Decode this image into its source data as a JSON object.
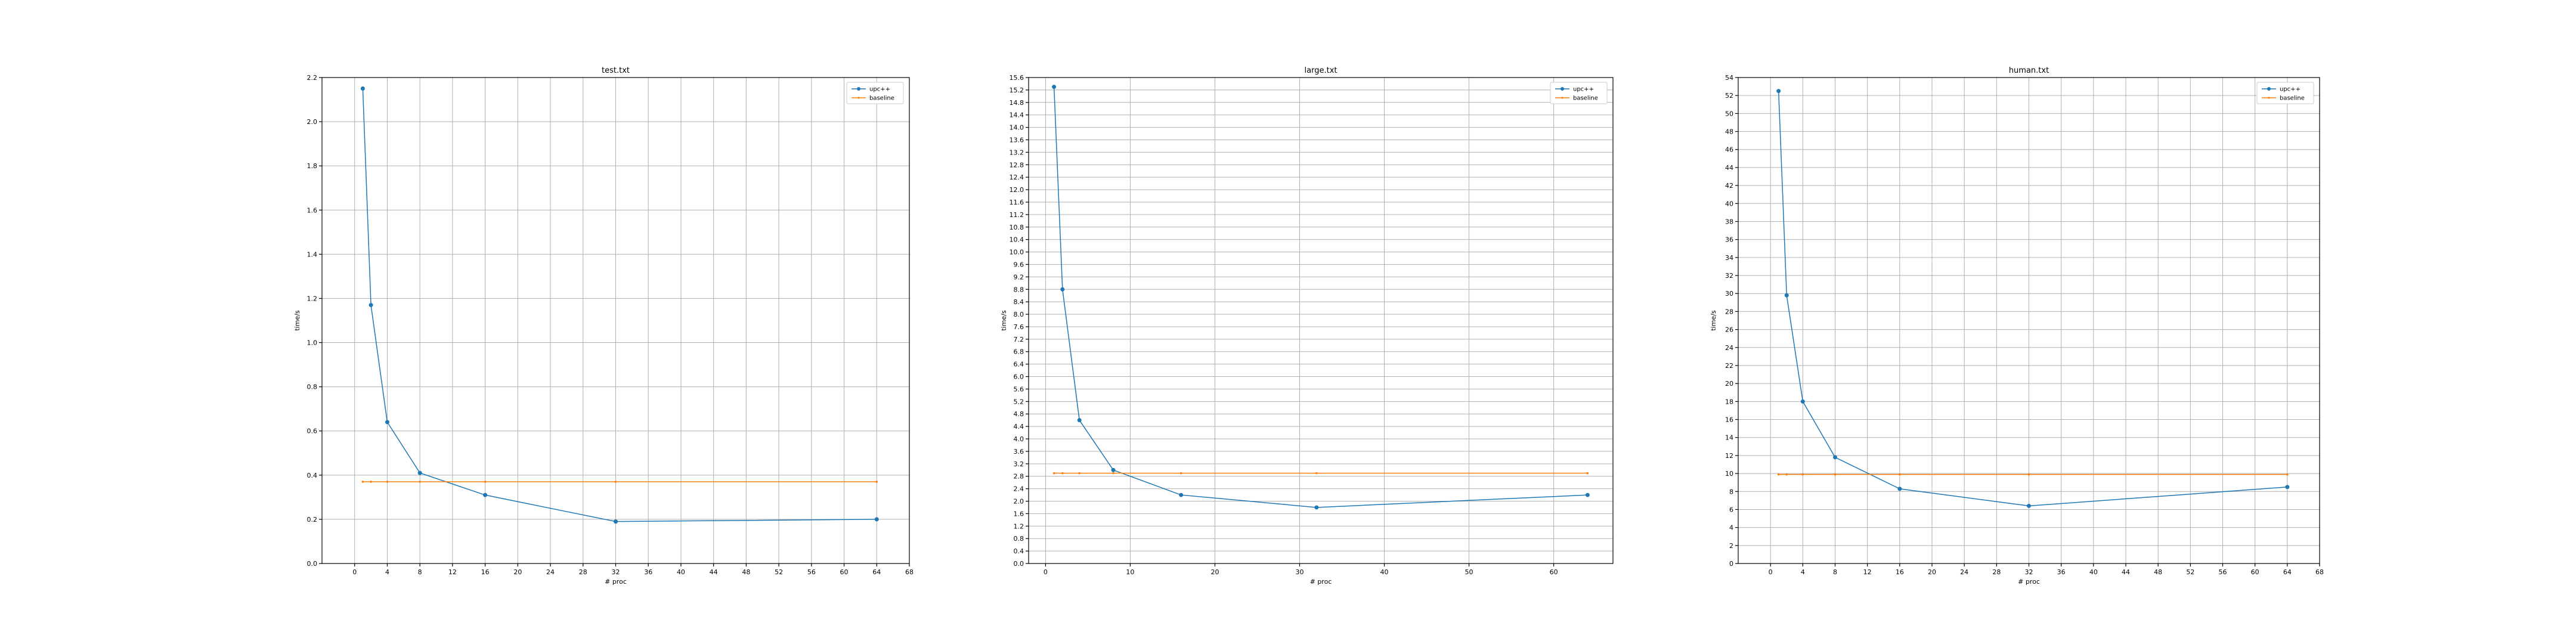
{
  "chart_data": [
    {
      "type": "line",
      "title": "test.txt",
      "xlabel": "# proc",
      "ylabel": "time/s",
      "grid": true,
      "legend_position": "top-right",
      "xlim": [
        -4,
        68
      ],
      "ylim": [
        0,
        2.2
      ],
      "xticks": [
        0,
        4,
        8,
        12,
        16,
        20,
        24,
        28,
        32,
        36,
        40,
        44,
        48,
        52,
        56,
        60,
        64,
        68
      ],
      "yticks": [
        0.0,
        0.2,
        0.4,
        0.6,
        0.8,
        1.0,
        1.2,
        1.4,
        1.6,
        1.8,
        2.0,
        2.2
      ],
      "ytick_decimals": 1,
      "x": [
        1,
        2,
        4,
        8,
        16,
        32,
        64
      ],
      "series": [
        {
          "name": "upc++",
          "color": "#1f77b4",
          "marker": "circle",
          "values": [
            2.15,
            1.17,
            0.64,
            0.41,
            0.31,
            0.19,
            0.2
          ]
        },
        {
          "name": "baseline",
          "color": "#ff7f0e",
          "marker": "dot",
          "values": [
            0.37,
            0.37,
            0.37,
            0.37,
            0.37,
            0.37,
            0.37
          ]
        }
      ]
    },
    {
      "type": "line",
      "title": "large.txt",
      "xlabel": "# proc",
      "ylabel": "time/s",
      "grid": true,
      "legend_position": "top-right",
      "xlim": [
        -2,
        67
      ],
      "ylim": [
        0,
        15.6
      ],
      "xticks": [
        0,
        10,
        20,
        30,
        40,
        50,
        60
      ],
      "yticks": [
        0.0,
        0.4,
        0.8,
        1.2,
        1.6,
        2.0,
        2.4,
        2.8,
        3.2,
        3.6,
        4.0,
        4.4,
        4.8,
        5.2,
        5.6,
        6.0,
        6.4,
        6.8,
        7.2,
        7.6,
        8.0,
        8.4,
        8.8,
        9.2,
        9.6,
        10.0,
        10.4,
        10.8,
        11.2,
        11.6,
        12.0,
        12.4,
        12.8,
        13.2,
        13.6,
        14.0,
        14.4,
        14.8,
        15.2,
        15.6
      ],
      "ytick_decimals": 1,
      "x": [
        1,
        2,
        4,
        8,
        16,
        32,
        64
      ],
      "series": [
        {
          "name": "upc++",
          "color": "#1f77b4",
          "marker": "circle",
          "values": [
            15.3,
            8.8,
            4.6,
            3.0,
            2.2,
            1.8,
            2.2
          ]
        },
        {
          "name": "baseline",
          "color": "#ff7f0e",
          "marker": "dot",
          "values": [
            2.9,
            2.9,
            2.9,
            2.9,
            2.9,
            2.9,
            2.9
          ]
        }
      ]
    },
    {
      "type": "line",
      "title": "human.txt",
      "xlabel": "# proc",
      "ylabel": "time/s",
      "grid": true,
      "legend_position": "top-right",
      "xlim": [
        -4,
        68
      ],
      "ylim": [
        0,
        54
      ],
      "xticks": [
        0,
        4,
        8,
        12,
        16,
        20,
        24,
        28,
        32,
        36,
        40,
        44,
        48,
        52,
        56,
        60,
        64,
        68
      ],
      "yticks": [
        0,
        2,
        4,
        6,
        8,
        10,
        12,
        14,
        16,
        18,
        20,
        22,
        24,
        26,
        28,
        30,
        32,
        34,
        36,
        38,
        40,
        42,
        44,
        46,
        48,
        50,
        52,
        54
      ],
      "ytick_decimals": 0,
      "x": [
        1,
        2,
        4,
        8,
        16,
        32,
        64
      ],
      "series": [
        {
          "name": "upc++",
          "color": "#1f77b4",
          "marker": "circle",
          "values": [
            52.5,
            29.8,
            18.0,
            11.8,
            8.3,
            6.4,
            8.5
          ]
        },
        {
          "name": "baseline",
          "color": "#ff7f0e",
          "marker": "dot",
          "values": [
            9.9,
            9.9,
            9.9,
            9.9,
            9.9,
            9.9,
            9.9
          ]
        }
      ]
    }
  ]
}
